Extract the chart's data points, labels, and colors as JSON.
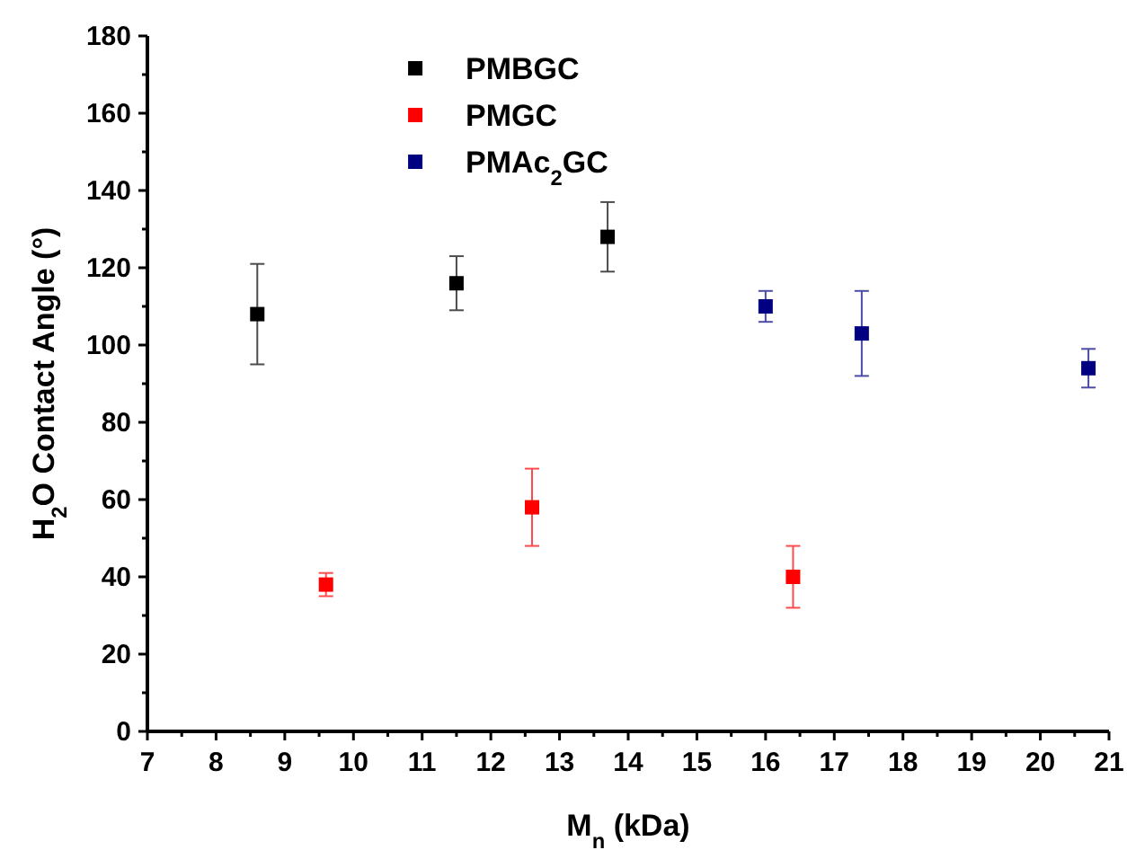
{
  "chart_data": {
    "type": "scatter",
    "xlabel": "M$_{n}$ (kDa)",
    "ylabel": "H$_{2}$O Contact Angle (°)",
    "xlim": [
      7,
      21
    ],
    "xticks": [
      7,
      8,
      9,
      10,
      11,
      12,
      13,
      14,
      15,
      16,
      17,
      18,
      19,
      20,
      21
    ],
    "ylim": [
      0,
      180
    ],
    "yticks": [
      0,
      20,
      40,
      60,
      80,
      100,
      120,
      140,
      160,
      180
    ],
    "marker": "square",
    "legend": "top",
    "grid": false,
    "series": [
      {
        "name": "PMBGC",
        "color": "#000000",
        "x": [
          8.6,
          11.5,
          13.7
        ],
        "values": [
          108,
          116,
          128
        ],
        "errors": [
          13,
          7,
          9
        ]
      },
      {
        "name": "PMGC",
        "color": "#ff0000",
        "x": [
          9.6,
          12.6,
          16.4
        ],
        "values": [
          38,
          58,
          40
        ],
        "errors": [
          3,
          10,
          8
        ]
      },
      {
        "name": "PMAc$_{2}$GC",
        "color": "#000080",
        "x": [
          16.0,
          17.4,
          20.7
        ],
        "values": [
          110,
          103,
          94
        ],
        "errors": [
          4,
          11,
          5
        ]
      }
    ]
  }
}
